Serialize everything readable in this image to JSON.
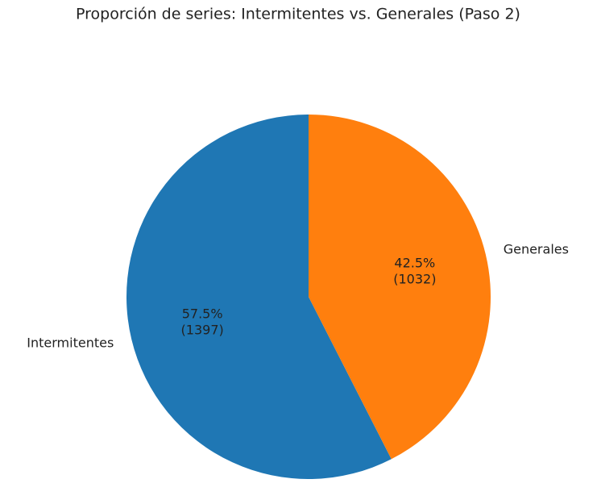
{
  "chart_data": {
    "type": "pie",
    "title": "Proporción de series: Intermitentes vs. Generales (Paso 2)",
    "categories": [
      "Intermitentes",
      "Generales"
    ],
    "values": [
      1397,
      1032
    ],
    "value_labels": [
      "57.5%\n(1397)",
      "42.5%\n(1032)"
    ],
    "colors": [
      "#1f77b4",
      "#ff7f0e"
    ]
  }
}
